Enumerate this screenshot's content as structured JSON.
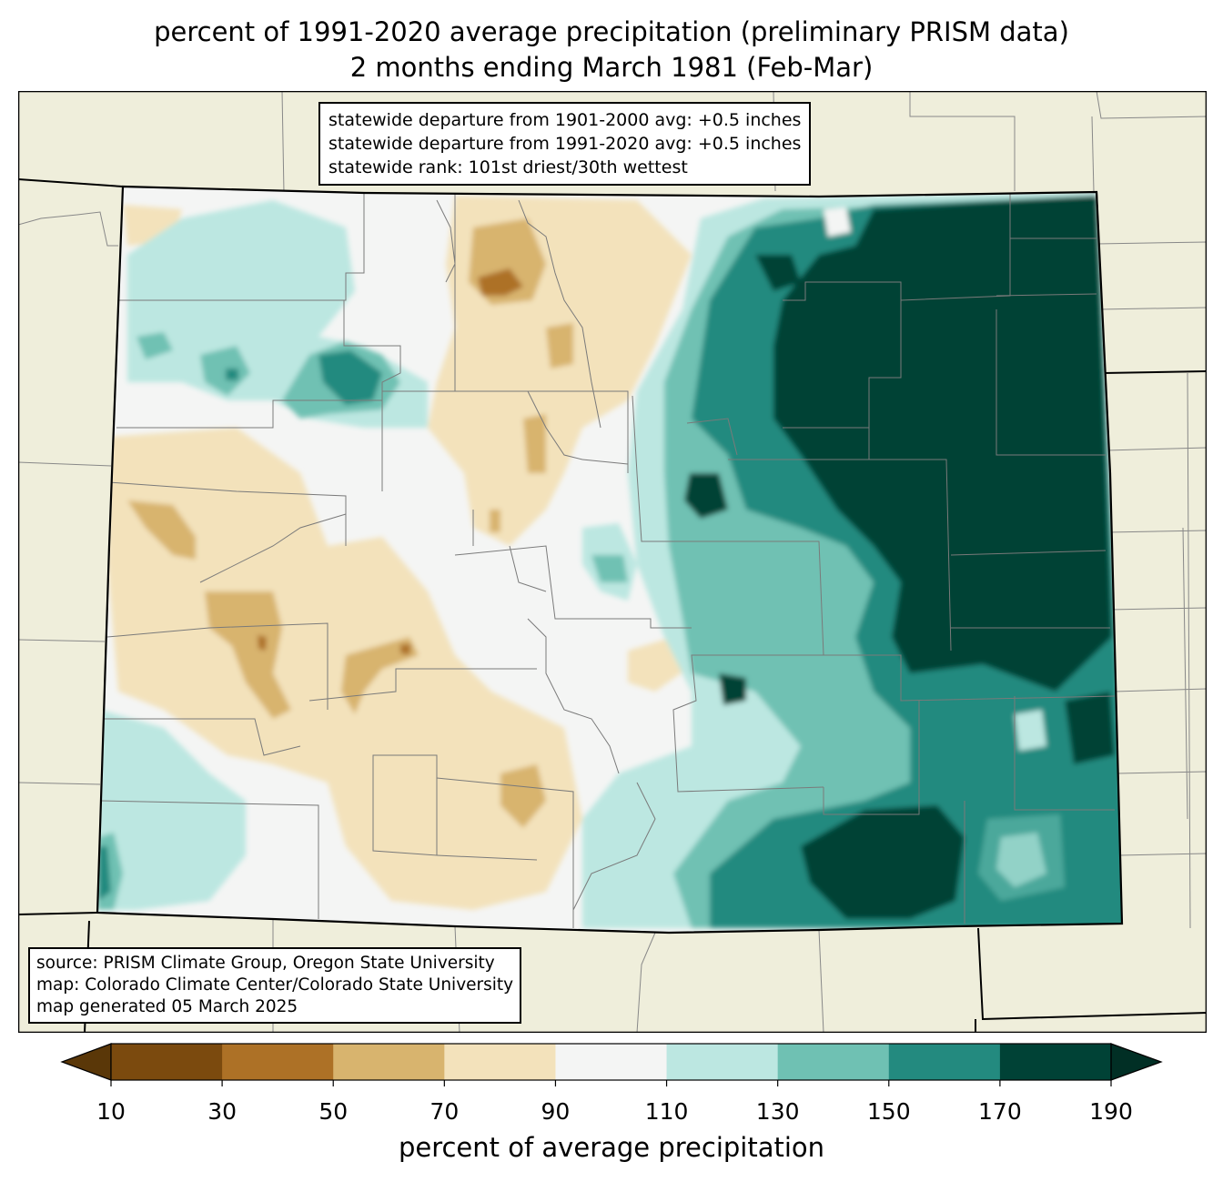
{
  "title": {
    "line1": "percent of 1991-2020 average precipitation (preliminary PRISM data)",
    "line2": "2 months ending March 1981 (Feb-Mar)"
  },
  "stats": {
    "line1": "statewide departure from 1901-2000 avg: +0.5 inches",
    "line2": "statewide departure from 1991-2020 avg: +0.5 inches",
    "line3": "statewide rank: 101st driest/30th wettest"
  },
  "source": {
    "line1": "source: PRISM Climate Group, Oregon State University",
    "line2": "map: Colorado Climate Center/Colorado State University",
    "line3": "map generated 05 March 2025"
  },
  "legend": {
    "label": "percent of average precipitation",
    "ticks": [
      "10",
      "30",
      "50",
      "70",
      "90",
      "110",
      "130",
      "150",
      "170",
      "190"
    ],
    "colors": [
      "#5a3708",
      "#7b4a0e",
      "#ad7126",
      "#d8b46e",
      "#f3e2bb",
      "#f4f5f4",
      "#bce7e1",
      "#6fc1b3",
      "#238a7f",
      "#004236",
      "#012f25"
    ],
    "under_color": "#5a3708",
    "over_color": "#012f25"
  },
  "map": {
    "land_color": "#efeedb",
    "state": "Colorado"
  }
}
